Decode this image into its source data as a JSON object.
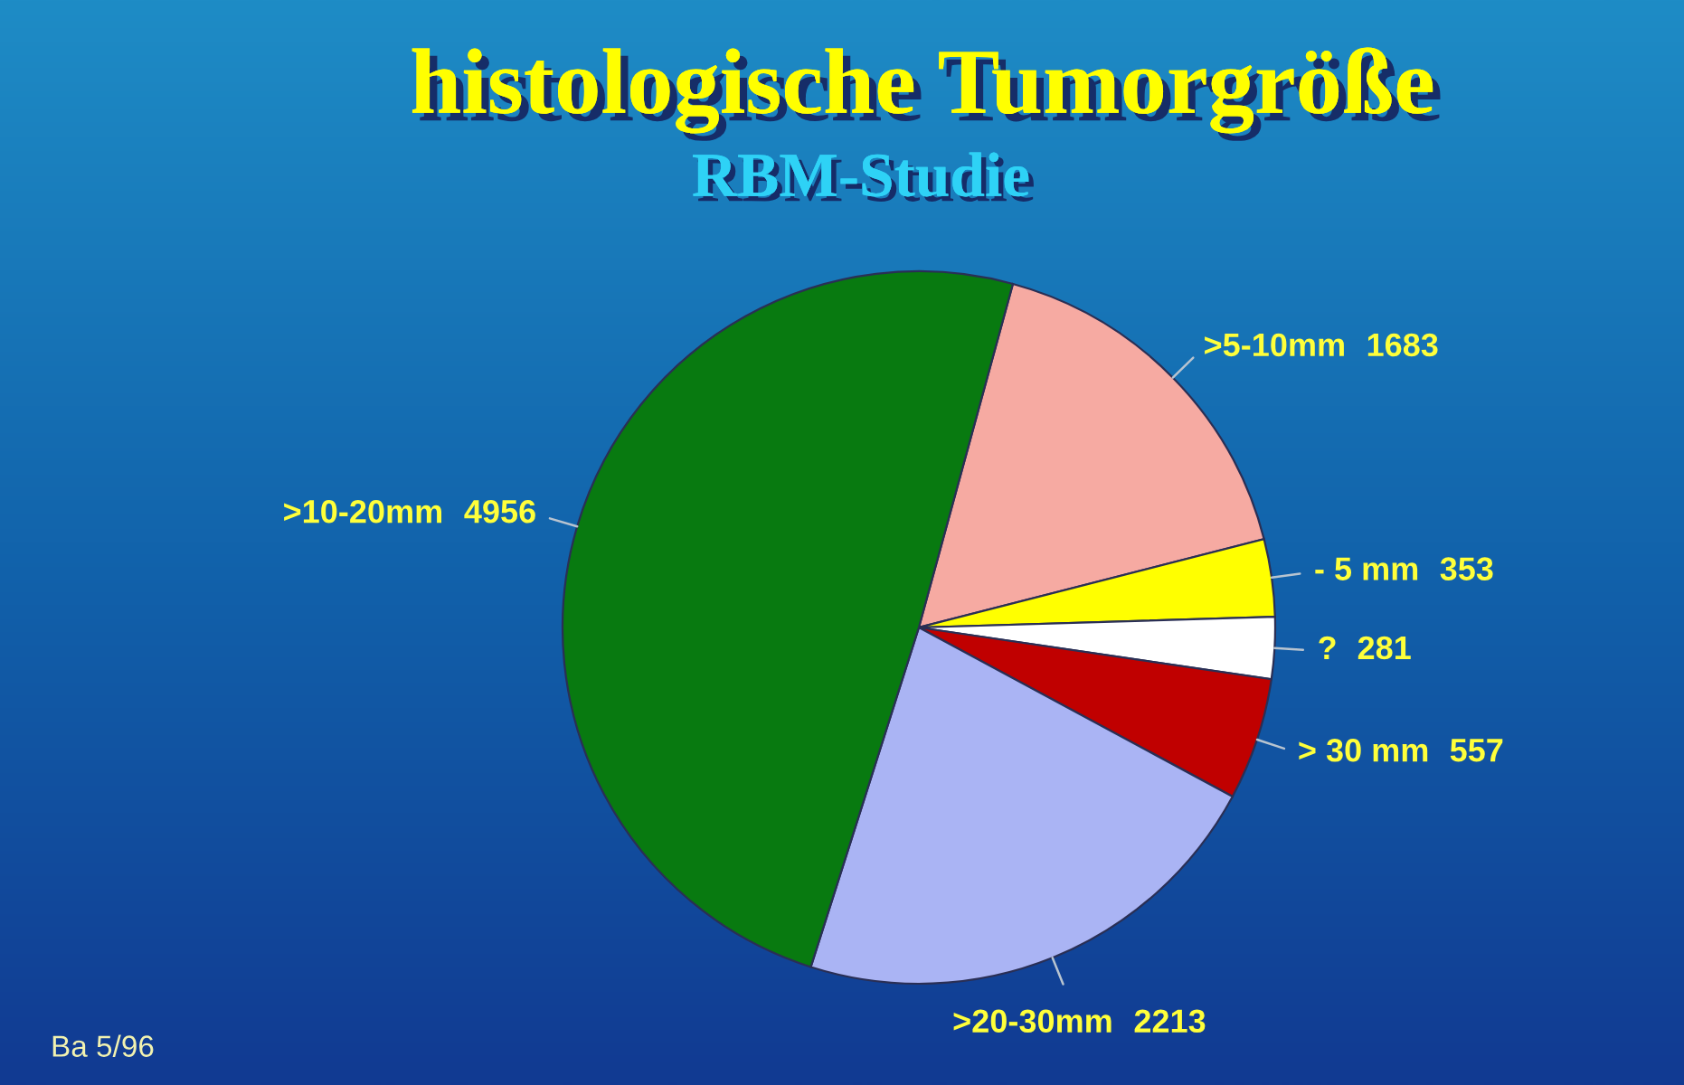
{
  "chart_data": {
    "type": "pie",
    "title": "histologische Tumorgröße",
    "subtitle": "RBM-Studie",
    "categories": [
      ">5-10mm",
      "- 5 mm",
      "?",
      "> 30 mm",
      ">20-30mm",
      ">10-20mm"
    ],
    "values": [
      1683,
      353,
      281,
      557,
      2213,
      4956
    ],
    "colors": [
      "#f6aaa2",
      "#ffff00",
      "#ffffff",
      "#c00000",
      "#aab4f4",
      "#087a10"
    ],
    "data_labels": true,
    "annotations": [
      "Ba 5/96"
    ]
  }
}
